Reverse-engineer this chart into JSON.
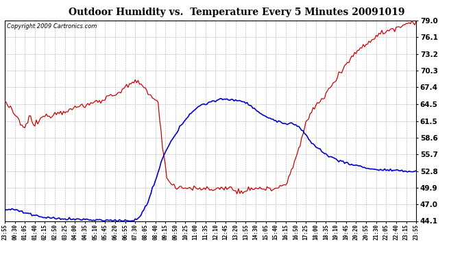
{
  "title": "Outdoor Humidity vs.  Temperature Every 5 Minutes 20091019",
  "copyright": "Copyright 2009 Cartronics.com",
  "ylabel_right_ticks": [
    44.1,
    47.0,
    49.9,
    52.8,
    55.7,
    58.6,
    61.5,
    64.5,
    67.4,
    70.3,
    73.2,
    76.1,
    79.0
  ],
  "y_min": 44.1,
  "y_max": 79.0,
  "background_color": "#ffffff",
  "plot_background": "#ffffff",
  "grid_color": "#aaaaaa",
  "title_color": "#000000",
  "red_color": "#cc0000",
  "blue_color": "#0000cc",
  "x_labels": [
    "23:55",
    "00:30",
    "01:05",
    "01:40",
    "02:15",
    "02:50",
    "03:25",
    "04:00",
    "04:35",
    "05:10",
    "05:45",
    "06:20",
    "06:55",
    "07:30",
    "08:05",
    "08:40",
    "09:15",
    "09:50",
    "10:25",
    "11:00",
    "11:35",
    "12:10",
    "12:45",
    "13:20",
    "13:55",
    "14:30",
    "15:05",
    "15:40",
    "16:15",
    "16:50",
    "17:25",
    "18:00",
    "18:35",
    "19:10",
    "19:45",
    "20:20",
    "20:55",
    "21:30",
    "22:05",
    "22:40",
    "23:15",
    "23:55"
  ]
}
